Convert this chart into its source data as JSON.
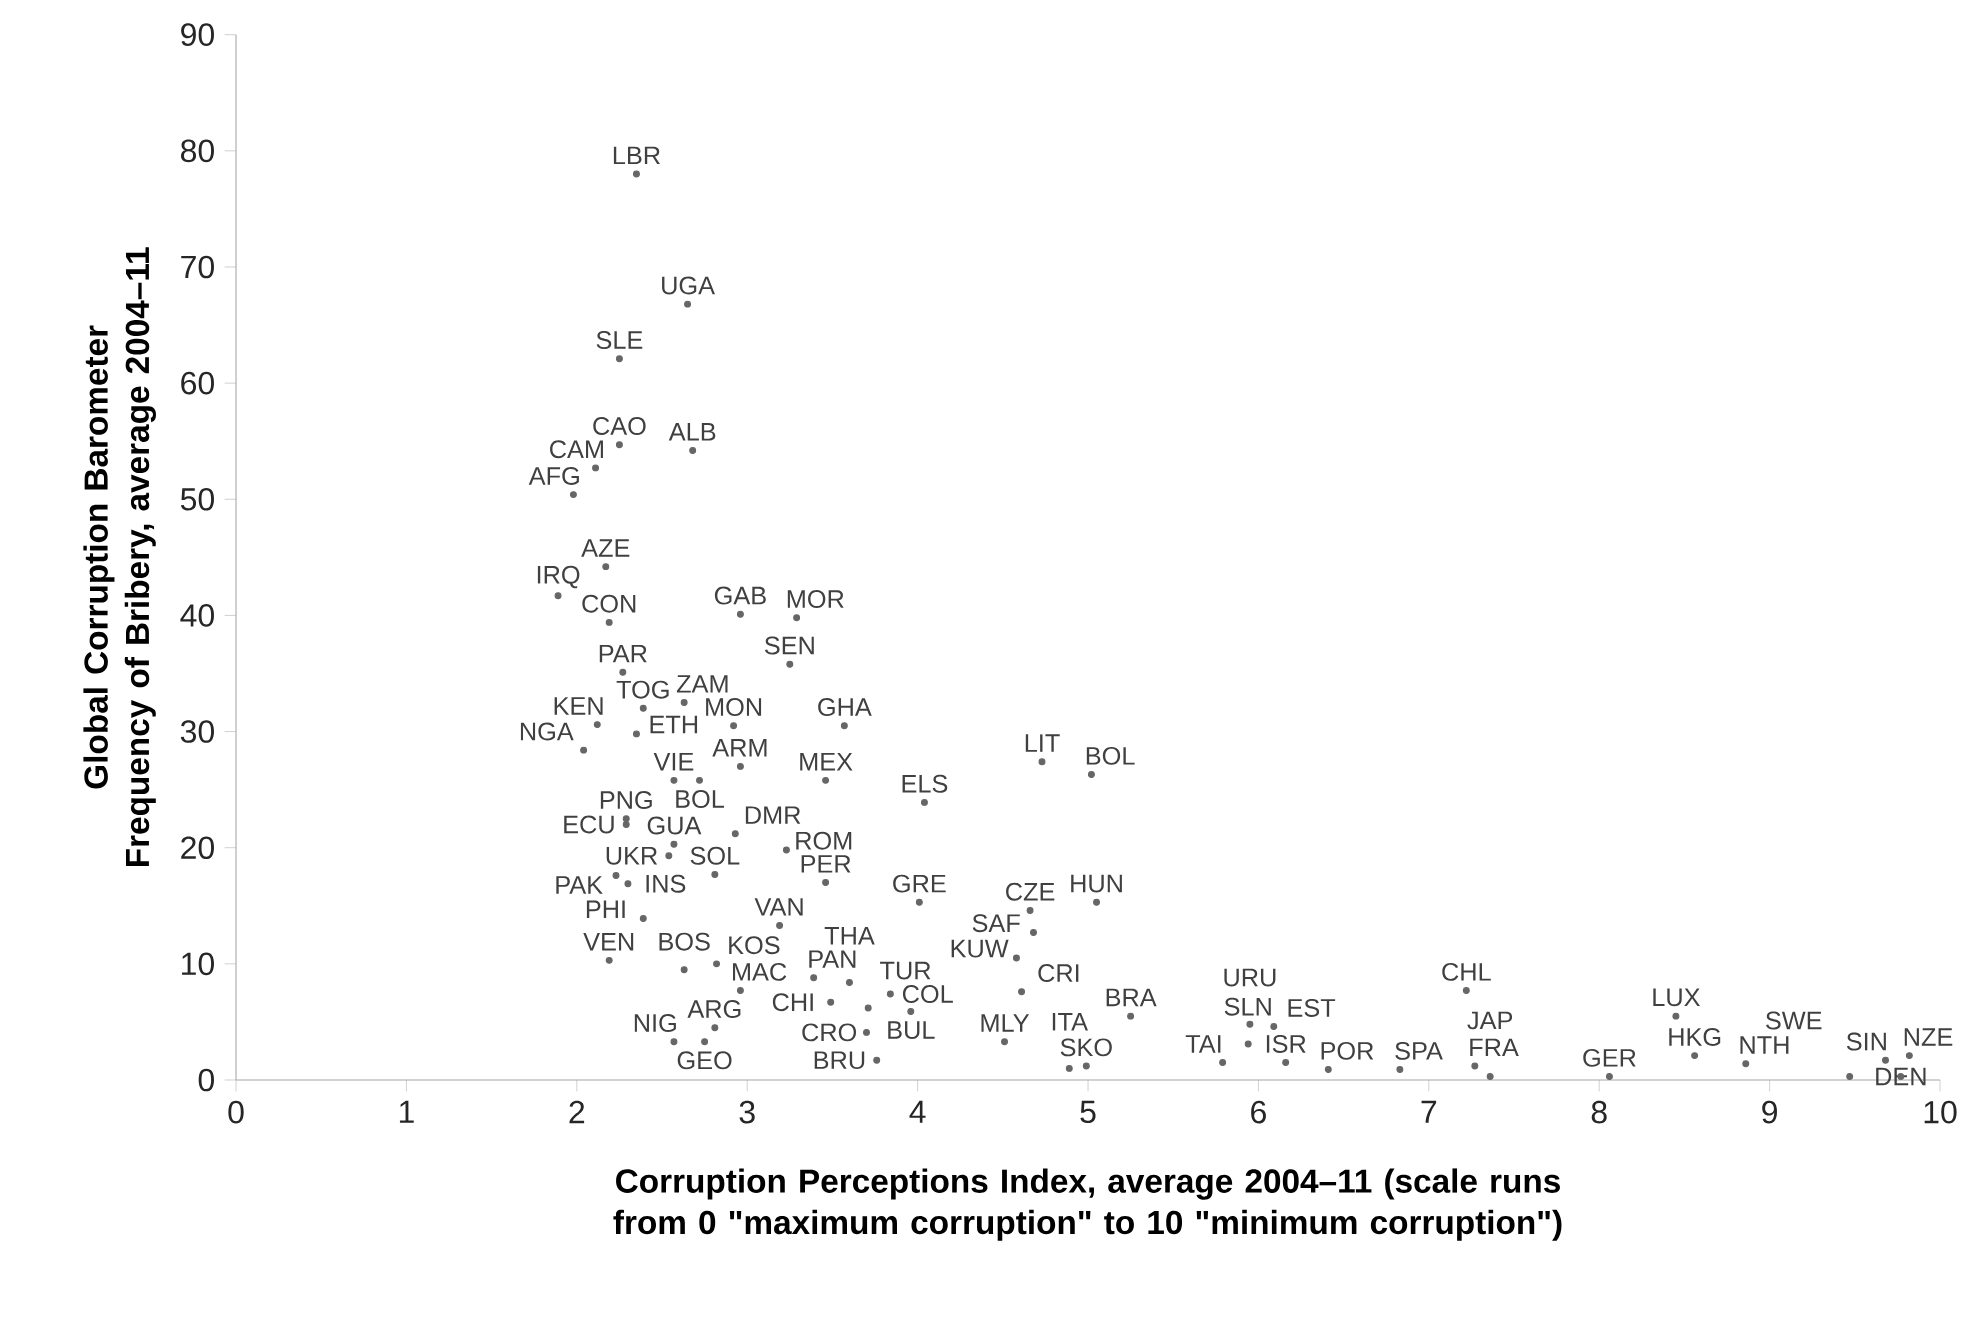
{
  "chart_data": {
    "type": "scatter",
    "xlabel": "Corruption Perceptions Index, average 2004–11 (scale runs from 0 \"maximum corruption\" to 10 \"minimum corruption\")",
    "ylabel": "Global Corruption Barometer Frequency of Bribery, average 2004–11",
    "xlim": [
      0,
      10
    ],
    "ylim": [
      0,
      90
    ],
    "xticks": [
      0,
      1,
      2,
      3,
      4,
      5,
      6,
      7,
      8,
      9,
      10
    ],
    "yticks": [
      0,
      10,
      20,
      30,
      40,
      50,
      60,
      70,
      80,
      90
    ],
    "grid": false,
    "marker": "circle",
    "x": [
      2.35,
      2.65,
      2.25,
      2.25,
      2.68,
      2.11,
      1.98,
      2.17,
      1.89,
      2.19,
      2.96,
      3.29,
      3.25,
      2.27,
      2.39,
      2.63,
      2.12,
      2.35,
      2.04,
      2.92,
      3.57,
      2.96,
      2.57,
      2.72,
      3.46,
      4.04,
      4.73,
      5.02,
      2.29,
      2.29,
      2.93,
      2.57,
      2.54,
      3.23,
      2.23,
      2.3,
      2.81,
      3.46,
      2.39,
      3.19,
      2.19,
      2.63,
      2.82,
      2.96,
      3.39,
      3.6,
      3.49,
      3.71,
      3.84,
      3.96,
      3.7,
      2.81,
      2.57,
      2.75,
      3.76,
      4.01,
      4.66,
      5.05,
      4.68,
      4.58,
      4.61,
      4.51,
      4.99,
      4.89,
      5.25,
      5.79,
      6.16,
      6.41,
      6.83,
      5.94,
      5.95,
      6.09,
      7.22,
      7.27,
      7.36,
      8.06,
      8.45,
      8.56,
      8.86,
      9.68,
      9.82,
      9.47,
      9.77
    ],
    "values": [
      78.0,
      66.8,
      62.1,
      54.7,
      54.2,
      52.7,
      50.4,
      44.2,
      41.7,
      39.4,
      40.1,
      39.8,
      35.8,
      35.1,
      32.0,
      32.5,
      30.6,
      29.8,
      28.4,
      30.5,
      30.5,
      27.0,
      25.8,
      25.8,
      25.8,
      23.9,
      27.4,
      26.3,
      22.5,
      22.0,
      21.2,
      20.3,
      19.3,
      19.8,
      17.6,
      16.9,
      17.7,
      17.0,
      13.9,
      13.3,
      10.3,
      9.5,
      10.0,
      7.7,
      8.8,
      8.4,
      6.7,
      6.2,
      7.4,
      5.9,
      4.1,
      4.5,
      3.3,
      3.3,
      1.7,
      15.3,
      14.6,
      15.3,
      12.7,
      10.5,
      7.6,
      3.3,
      1.2,
      1.0,
      5.5,
      1.5,
      1.5,
      0.9,
      0.9,
      3.1,
      4.8,
      4.6,
      7.7,
      1.2,
      0.3,
      0.3,
      5.5,
      2.1,
      1.4,
      1.7,
      2.1,
      0.3,
      0.3
    ],
    "annotations": [
      {
        "text": "LBR",
        "x": 2.35,
        "y": 78.0
      },
      {
        "text": "UGA",
        "x": 2.65,
        "y": 66.8
      },
      {
        "text": "SLE",
        "x": 2.25,
        "y": 62.1
      },
      {
        "text": "CAO",
        "x": 2.25,
        "y": 54.7
      },
      {
        "text": "ALB",
        "x": 2.68,
        "y": 54.2
      },
      {
        "text": "CAM",
        "x": 2.11,
        "y": 52.7
      },
      {
        "text": "AFG",
        "x": 1.98,
        "y": 50.4
      },
      {
        "text": "AZE",
        "x": 2.17,
        "y": 44.2
      },
      {
        "text": "IRQ",
        "x": 1.89,
        "y": 41.7
      },
      {
        "text": "CON",
        "x": 2.19,
        "y": 39.4
      },
      {
        "text": "GAB",
        "x": 2.96,
        "y": 40.1
      },
      {
        "text": "MOR",
        "x": 3.29,
        "y": 39.8
      },
      {
        "text": "SEN",
        "x": 3.25,
        "y": 35.8
      },
      {
        "text": "PAR",
        "x": 2.27,
        "y": 35.1
      },
      {
        "text": "TOG",
        "x": 2.39,
        "y": 32.0
      },
      {
        "text": "ZAM",
        "x": 2.63,
        "y": 32.5
      },
      {
        "text": "KEN",
        "x": 2.12,
        "y": 30.6
      },
      {
        "text": "ETH",
        "x": 2.35,
        "y": 29.8
      },
      {
        "text": "NGA",
        "x": 2.04,
        "y": 28.4
      },
      {
        "text": "MON",
        "x": 2.92,
        "y": 30.5
      },
      {
        "text": "GHA",
        "x": 3.57,
        "y": 30.5
      },
      {
        "text": "ARM",
        "x": 2.96,
        "y": 27.0
      },
      {
        "text": "VIE",
        "x": 2.57,
        "y": 25.8
      },
      {
        "text": "BOL",
        "x": 2.72,
        "y": 25.8
      },
      {
        "text": "MEX",
        "x": 3.46,
        "y": 25.8
      },
      {
        "text": "ELS",
        "x": 4.04,
        "y": 23.9
      },
      {
        "text": "LIT",
        "x": 4.73,
        "y": 27.4
      },
      {
        "text": "BOL",
        "x": 5.02,
        "y": 26.3
      },
      {
        "text": "PNG",
        "x": 2.29,
        "y": 22.5
      },
      {
        "text": "ECU",
        "x": 2.29,
        "y": 22.0
      },
      {
        "text": "DMR",
        "x": 2.93,
        "y": 21.2
      },
      {
        "text": "GUA",
        "x": 2.57,
        "y": 20.3
      },
      {
        "text": "UKR",
        "x": 2.54,
        "y": 19.3
      },
      {
        "text": "ROM",
        "x": 3.23,
        "y": 19.8
      },
      {
        "text": "PAK",
        "x": 2.23,
        "y": 17.6
      },
      {
        "text": "INS",
        "x": 2.3,
        "y": 16.9
      },
      {
        "text": "SOL",
        "x": 2.81,
        "y": 17.7
      },
      {
        "text": "PER",
        "x": 3.46,
        "y": 17.0
      },
      {
        "text": "PHI",
        "x": 2.39,
        "y": 13.9
      },
      {
        "text": "VAN",
        "x": 3.19,
        "y": 13.3
      },
      {
        "text": "VEN",
        "x": 2.19,
        "y": 10.3
      },
      {
        "text": "BOS",
        "x": 2.63,
        "y": 9.5
      },
      {
        "text": "KOS",
        "x": 2.82,
        "y": 10.0
      },
      {
        "text": "MAC",
        "x": 2.96,
        "y": 7.7
      },
      {
        "text": "PAN",
        "x": 3.39,
        "y": 8.8
      },
      {
        "text": "THA",
        "x": 3.6,
        "y": 8.4
      },
      {
        "text": "CHI",
        "x": 3.49,
        "y": 6.7
      },
      {
        "text": "TUR",
        "x": 3.71,
        "y": 6.2
      },
      {
        "text": "COL",
        "x": 3.84,
        "y": 7.4
      },
      {
        "text": "BUL",
        "x": 3.96,
        "y": 5.9
      },
      {
        "text": "CRO",
        "x": 3.7,
        "y": 4.1
      },
      {
        "text": "ARG",
        "x": 2.81,
        "y": 4.5
      },
      {
        "text": "NIG",
        "x": 2.57,
        "y": 3.3
      },
      {
        "text": "GEO",
        "x": 2.75,
        "y": 3.3
      },
      {
        "text": "BRU",
        "x": 3.76,
        "y": 1.7
      },
      {
        "text": "GRE",
        "x": 4.01,
        "y": 15.3
      },
      {
        "text": "CZE",
        "x": 4.66,
        "y": 14.6
      },
      {
        "text": "HUN",
        "x": 5.05,
        "y": 15.3
      },
      {
        "text": "SAF",
        "x": 4.68,
        "y": 12.7
      },
      {
        "text": "KUW",
        "x": 4.58,
        "y": 10.5
      },
      {
        "text": "CRI",
        "x": 4.61,
        "y": 7.6
      },
      {
        "text": "MLY",
        "x": 4.51,
        "y": 3.3
      },
      {
        "text": "SKO",
        "x": 4.99,
        "y": 1.2
      },
      {
        "text": "ITA",
        "x": 4.89,
        "y": 1.0
      },
      {
        "text": "BRA",
        "x": 5.25,
        "y": 5.5
      },
      {
        "text": "TAI",
        "x": 5.79,
        "y": 1.5
      },
      {
        "text": "ISR",
        "x": 6.16,
        "y": 1.5
      },
      {
        "text": "POR",
        "x": 6.41,
        "y": 0.9
      },
      {
        "text": "SPA",
        "x": 6.83,
        "y": 0.9
      },
      {
        "text": "SLN",
        "x": 5.94,
        "y": 3.1
      },
      {
        "text": "URU",
        "x": 5.95,
        "y": 4.8
      },
      {
        "text": "EST",
        "x": 6.09,
        "y": 4.6
      },
      {
        "text": "CHL",
        "x": 7.22,
        "y": 7.7
      },
      {
        "text": "FRA",
        "x": 7.27,
        "y": 1.2
      },
      {
        "text": "JAP",
        "x": 7.36,
        "y": 0.3
      },
      {
        "text": "GER",
        "x": 8.06,
        "y": 0.3
      },
      {
        "text": "LUX",
        "x": 8.45,
        "y": 5.5
      },
      {
        "text": "HKG",
        "x": 8.56,
        "y": 2.1
      },
      {
        "text": "NTH",
        "x": 8.86,
        "y": 1.4
      },
      {
        "text": "SIN",
        "x": 9.68,
        "y": 1.7
      },
      {
        "text": "NZE",
        "x": 9.82,
        "y": 2.1
      },
      {
        "text": "SWE",
        "x": 9.47,
        "y": 0.3
      },
      {
        "text": "DEN",
        "x": 9.77,
        "y": 0.3
      }
    ]
  }
}
